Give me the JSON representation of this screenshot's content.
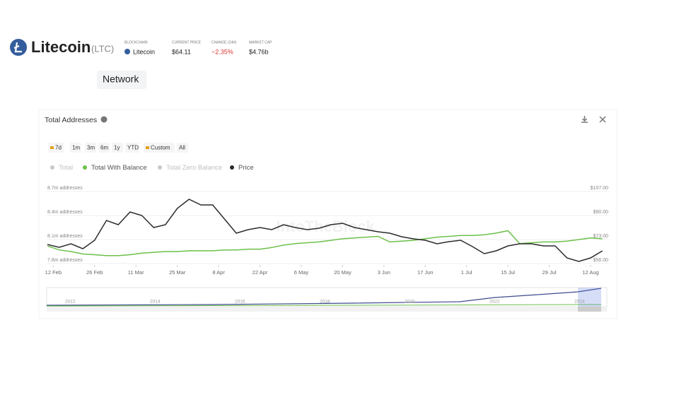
{
  "header": {
    "name": "Litecoin",
    "ticker": "(LTC)",
    "stats": [
      {
        "label": "BLOCKCHAIN",
        "value": "Litecoin"
      },
      {
        "label": "CURRENT PRICE",
        "value": "$64.11"
      },
      {
        "label": "CHANGE (24H)",
        "value": "−2.35%"
      },
      {
        "label": "MARKET CAP",
        "value": "$4.76b"
      }
    ]
  },
  "tab": "Network",
  "chart_data": {
    "type": "line",
    "title": "Total Addresses",
    "watermark": "IntoTheBlock",
    "range_buttons": [
      "7d",
      "1m",
      "3m",
      "6m",
      "1y",
      "YTD",
      "Custom",
      "All"
    ],
    "x": [
      -2,
      2,
      6,
      10,
      14,
      18,
      22,
      26,
      30,
      34,
      38,
      42,
      46,
      50,
      54,
      58,
      62,
      66,
      70,
      74,
      78,
      82,
      86,
      90,
      94,
      98,
      102,
      106,
      110,
      114,
      118,
      122,
      126,
      130,
      134,
      138,
      142,
      146,
      150,
      154,
      158,
      162,
      166,
      170,
      174,
      178,
      182,
      186
    ],
    "xlim": [
      -2,
      188
    ],
    "xticks": [
      {
        "value": 0,
        "label": "12 Feb"
      },
      {
        "value": 14,
        "label": "26 Feb"
      },
      {
        "value": 28,
        "label": "11 Mar"
      },
      {
        "value": 42,
        "label": "25 Mar"
      },
      {
        "value": 56,
        "label": "8 Apr"
      },
      {
        "value": 70,
        "label": "22 Apr"
      },
      {
        "value": 84,
        "label": "6 May"
      },
      {
        "value": 98,
        "label": "20 May"
      },
      {
        "value": 112,
        "label": "3 Jun"
      },
      {
        "value": 126,
        "label": "17 Jun"
      },
      {
        "value": 140,
        "label": "1 Jul"
      },
      {
        "value": 154,
        "label": "15 Jul"
      },
      {
        "value": 168,
        "label": "29 Jul"
      },
      {
        "value": 182,
        "label": "12 Aug"
      }
    ],
    "ylim": [
      7.8,
      8.7
    ],
    "yticks": [
      {
        "value": 8.7,
        "label": "8.7m addresses"
      },
      {
        "value": 8.4,
        "label": "8.4m addresses"
      },
      {
        "value": 8.1,
        "label": "8.1m addresses"
      },
      {
        "value": 7.8,
        "label": "7.8m addresses"
      }
    ],
    "y2lim": [
      56,
      107
    ],
    "y2ticks": [
      {
        "value": 107,
        "label": "$107.00"
      },
      {
        "value": 90,
        "label": "$90.00"
      },
      {
        "value": 73,
        "label": "$73.00"
      },
      {
        "value": 56,
        "label": "$56.00"
      }
    ],
    "series": [
      {
        "name": "Total",
        "color": "#c8c8c8",
        "hidden": true
      },
      {
        "name": "Total With Balance",
        "color": "#6cc04a",
        "values": [
          8.02,
          7.97,
          7.95,
          7.92,
          7.91,
          7.9,
          7.9,
          7.91,
          7.93,
          7.94,
          7.95,
          7.95,
          7.96,
          7.96,
          7.96,
          7.97,
          7.97,
          7.98,
          7.98,
          8.0,
          8.03,
          8.05,
          8.06,
          8.07,
          8.09,
          8.11,
          8.12,
          8.13,
          8.14,
          8.07,
          8.08,
          8.09,
          8.11,
          8.13,
          8.14,
          8.15,
          8.15,
          8.16,
          8.18,
          8.21,
          8.05,
          8.06,
          8.07,
          8.07,
          8.08,
          8.1,
          8.12,
          8.11
        ]
      },
      {
        "name": "Total Zero Balance",
        "color": "#c8c8c8",
        "hidden": true
      },
      {
        "name": "Price",
        "color": "#2b2b2b",
        "axis": "y2",
        "values": [
          69.5,
          67.5,
          70,
          66.5,
          72.5,
          86.5,
          83.5,
          92.5,
          90,
          81.5,
          83.5,
          95,
          101.5,
          97.5,
          97.5,
          87.5,
          77.5,
          80,
          81.5,
          80,
          83.5,
          81.5,
          80,
          81,
          83.5,
          84.5,
          81.5,
          80,
          78.5,
          77.5,
          75,
          73.5,
          72.5,
          70,
          71.5,
          72.5,
          68,
          63,
          65,
          68.5,
          70,
          70,
          68.5,
          68.5,
          60,
          57.5,
          60,
          65
        ]
      }
    ],
    "navigator_years": [
      "2012",
      "2014",
      "2016",
      "2018",
      "2020",
      "2022",
      "2024"
    ]
  }
}
